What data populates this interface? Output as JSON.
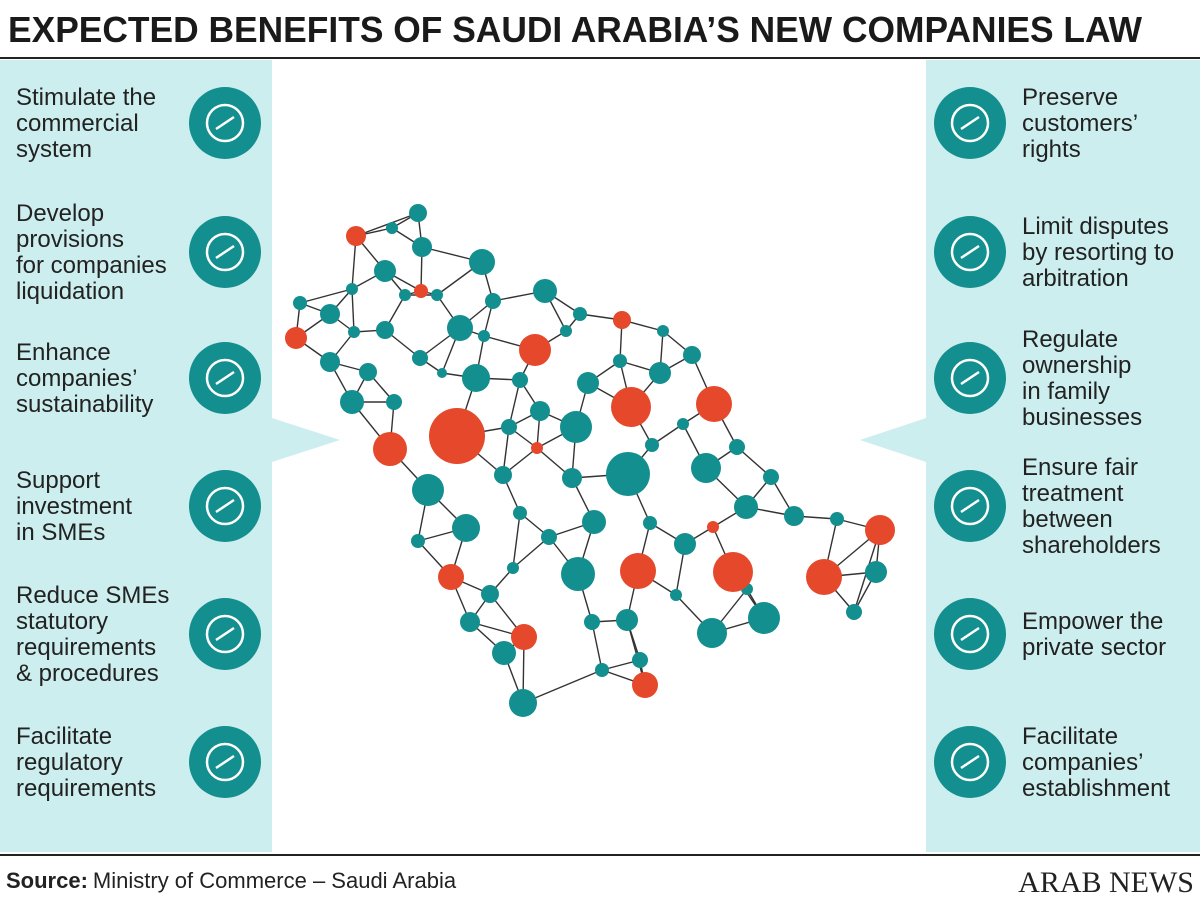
{
  "header": {
    "title": "EXPECTED BENEFITS OF SAUDI ARABIA’S NEW COMPANIES LAW"
  },
  "left_items": [
    {
      "lines": [
        "Stimulate the",
        "commercial",
        "system"
      ]
    },
    {
      "lines": [
        "Develop",
        "provisions",
        "for companies",
        "liquidation"
      ]
    },
    {
      "lines": [
        "Enhance",
        "companies’",
        "sustainability"
      ]
    },
    {
      "lines": [
        "Support",
        "investment",
        "in SMEs"
      ]
    },
    {
      "lines": [
        "Reduce SMEs",
        "statutory",
        "requirements",
        "& procedures"
      ]
    },
    {
      "lines": [
        "Facilitate",
        "regulatory",
        "requirements"
      ]
    }
  ],
  "right_items": [
    {
      "lines": [
        "Preserve",
        "customers’",
        "rights"
      ]
    },
    {
      "lines": [
        "Limit disputes",
        "by resorting to",
        "arbitration"
      ]
    },
    {
      "lines": [
        "Regulate",
        "ownership",
        "in family",
        "businesses"
      ]
    },
    {
      "lines": [
        "Ensure fair",
        "treatment",
        "between",
        "shareholders"
      ]
    },
    {
      "lines": [
        "Empower the",
        "private sector"
      ]
    },
    {
      "lines": [
        "Facilitate",
        "companies’",
        "establishment"
      ]
    }
  ],
  "source": {
    "label": "Source:",
    "text": "Ministry of Commerce – Saudi Arabia"
  },
  "logo": "ARAB NEWS"
}
